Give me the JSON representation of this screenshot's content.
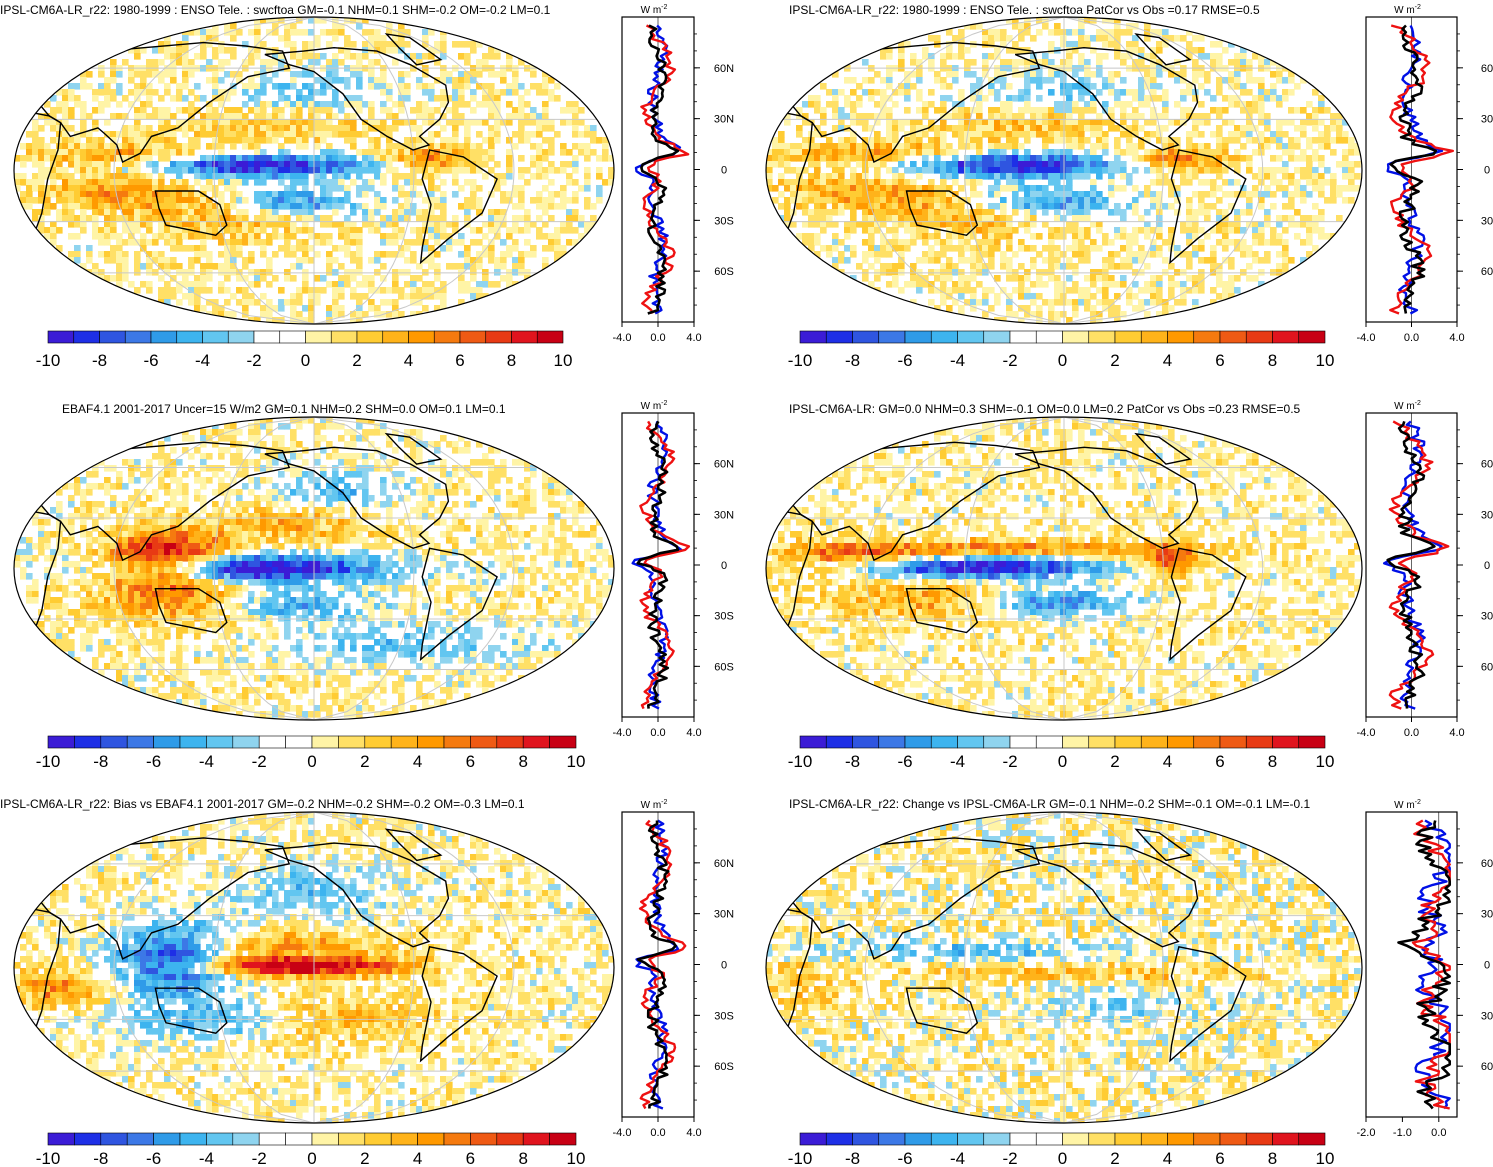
{
  "figure": {
    "colormap": [
      "#3b1cd6",
      "#1e2fe6",
      "#2f55e0",
      "#3c78e6",
      "#2f9be8",
      "#3db4ef",
      "#62c6f0",
      "#8fd4ef",
      "#ffffff",
      "#ffffff",
      "#fff4a6",
      "#ffe066",
      "#ffcc33",
      "#ffb31a",
      "#ff9900",
      "#f57a0f",
      "#ef5a14",
      "#e83a14",
      "#e0141e",
      "#c80014"
    ],
    "colors": {
      "model_line": "#0010e6",
      "obs_line": "#ee1111",
      "mean_line": "#000000",
      "grid": "#c8c8c8",
      "coast": "#000000"
    }
  },
  "chart_data": [
    {
      "type": "heatmap",
      "title": "IPSL-CM6A-LR_r22: 1980-1999 : ENSO Tele. : swcftoa GM=-0.1 NHM=0.1 SHM=-0.2 OM=-0.2 LM=0.1",
      "units": "W m",
      "units_sup": "-2",
      "colorbar_ticks": [
        "-10",
        "-8",
        "-6",
        "-4",
        "-2",
        "0",
        "2",
        "4",
        "6",
        "8",
        "10"
      ],
      "zonal_profile": {
        "type": "line",
        "xlim": [
          -4.0,
          4.0
        ],
        "xtick_labels": [
          "-4.0",
          "0.0",
          "4.0"
        ],
        "lat_ticks": [
          "60N",
          "30N",
          "0",
          "30S",
          "60S"
        ],
        "lat_values": [
          60,
          30,
          0,
          -30,
          -60
        ],
        "series_names": [
          "model",
          "observations",
          "mean"
        ]
      }
    },
    {
      "type": "heatmap",
      "title": "IPSL-CM6A-LR_r22: 1980-1999 : ENSO Tele. : swcftoa PatCor vs Obs =0.17 RMSE=0.5",
      "units": "W m",
      "units_sup": "-2",
      "colorbar_ticks": [
        "-10",
        "-8",
        "-6",
        "-4",
        "-2",
        "0",
        "2",
        "4",
        "6",
        "8",
        "10"
      ],
      "zonal_profile": {
        "type": "line",
        "xlim": [
          -4.0,
          4.0
        ],
        "xtick_labels": [
          "-4.0",
          "0.0",
          "4.0"
        ],
        "lat_ticks": [
          "60",
          "30",
          "0",
          "30",
          "60"
        ],
        "lat_values": [
          60,
          30,
          0,
          -30,
          -60
        ],
        "series_names": [
          "model",
          "observations",
          "mean"
        ]
      }
    },
    {
      "type": "heatmap",
      "title": "EBAF4.1 2001-2017 Uncer=15 W/m2 GM=0.1 NHM=0.2 SHM=0.0 OM=0.1 LM=0.1",
      "units": "W m",
      "units_sup": "-2",
      "colorbar_ticks": [
        "-10",
        "-8",
        "-6",
        "-4",
        "-2",
        "0",
        "2",
        "4",
        "6",
        "8",
        "10"
      ],
      "zonal_profile": {
        "type": "line",
        "xlim": [
          -4.0,
          4.0
        ],
        "xtick_labels": [
          "-4.0",
          "0.0",
          "4.0"
        ],
        "lat_ticks": [
          "60N",
          "30N",
          "0",
          "30S",
          "60S"
        ],
        "lat_values": [
          60,
          30,
          0,
          -30,
          -60
        ],
        "series_names": [
          "model",
          "observations",
          "mean"
        ]
      }
    },
    {
      "type": "heatmap",
      "title": "IPSL-CM6A-LR: GM=0.0 NHM=0.3 SHM=-0.1 OM=0.0 LM=0.2 PatCor vs Obs =0.23 RMSE=0.5",
      "units": "W m",
      "units_sup": "-2",
      "colorbar_ticks": [
        "-10",
        "-8",
        "-6",
        "-4",
        "-2",
        "0",
        "2",
        "4",
        "6",
        "8",
        "10"
      ],
      "zonal_profile": {
        "type": "line",
        "xlim": [
          -4.0,
          4.0
        ],
        "xtick_labels": [
          "-4.0",
          "0.0",
          "4.0"
        ],
        "lat_ticks": [
          "60",
          "30",
          "0",
          "30",
          "60"
        ],
        "lat_values": [
          60,
          30,
          0,
          -30,
          -60
        ],
        "series_names": [
          "model",
          "observations",
          "mean"
        ]
      }
    },
    {
      "type": "heatmap",
      "title": "IPSL-CM6A-LR_r22: Bias vs EBAF4.1 2001-2017 GM=-0.2 NHM=-0.2 SHM=-0.2 OM=-0.3 LM=0.1",
      "units": "W m",
      "units_sup": "-2",
      "colorbar_ticks": [
        "-10",
        "-8",
        "-6",
        "-4",
        "-2",
        "0",
        "2",
        "4",
        "6",
        "8",
        "10"
      ],
      "zonal_profile": {
        "type": "line",
        "xlim": [
          -4.0,
          4.0
        ],
        "xtick_labels": [
          "-4.0",
          "0.0",
          "4.0"
        ],
        "lat_ticks": [
          "60N",
          "30N",
          "0",
          "30S",
          "60S"
        ],
        "lat_values": [
          60,
          30,
          0,
          -30,
          -60
        ],
        "series_names": [
          "model",
          "observations",
          "mean"
        ]
      }
    },
    {
      "type": "heatmap",
      "title": "IPSL-CM6A-LR_r22: Change vs IPSL-CM6A-LR GM=-0.1 NHM=-0.2 SHM=-0.1 OM=-0.1 LM=-0.1",
      "units": "W m",
      "units_sup": "-2",
      "colorbar_ticks": [
        "-10",
        "-8",
        "-6",
        "-4",
        "-2",
        "0",
        "2",
        "4",
        "6",
        "8",
        "10"
      ],
      "zonal_profile": {
        "type": "line",
        "xlim": [
          -2.0,
          0.5
        ],
        "xtick_labels": [
          "-2.0",
          "-1.0",
          "0.0"
        ],
        "lat_ticks": [
          "60",
          "30",
          "0",
          "30",
          "60"
        ],
        "lat_values": [
          60,
          30,
          0,
          -30,
          -60
        ],
        "series_names": [
          "model",
          "observations",
          "mean"
        ]
      }
    }
  ]
}
